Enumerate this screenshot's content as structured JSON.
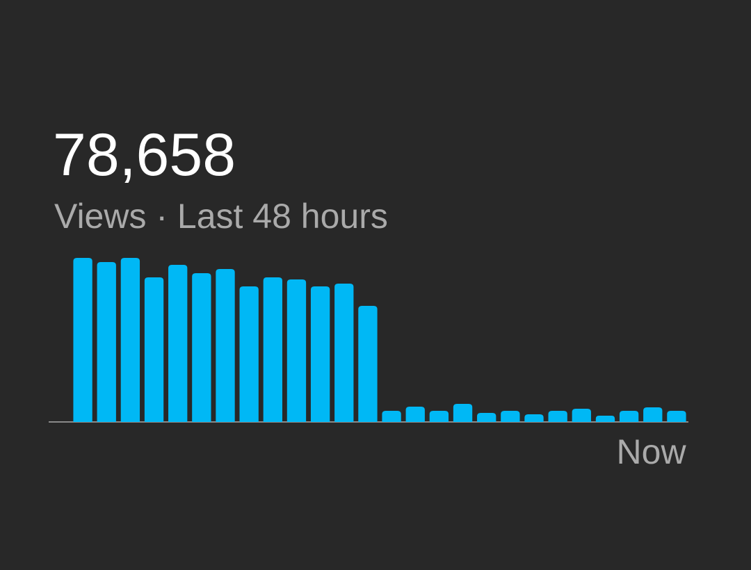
{
  "chart_data": {
    "type": "bar",
    "title": "78,658",
    "subtitle": "Views · Last 48 hours",
    "categories": [
      null,
      null,
      null,
      null,
      null,
      null,
      null,
      null,
      null,
      null,
      null,
      null,
      null,
      null,
      null,
      null,
      null,
      null,
      null,
      null,
      null,
      null,
      null,
      null,
      null,
      "Now"
    ],
    "values": [
      236,
      230,
      236,
      208,
      226,
      214,
      220,
      195,
      208,
      205,
      195,
      199,
      167,
      16,
      22,
      16,
      26,
      13,
      16,
      11,
      16,
      19,
      9,
      16,
      21,
      16
    ],
    "color": "#00b8f5",
    "ylim": [
      0,
      236
    ]
  }
}
